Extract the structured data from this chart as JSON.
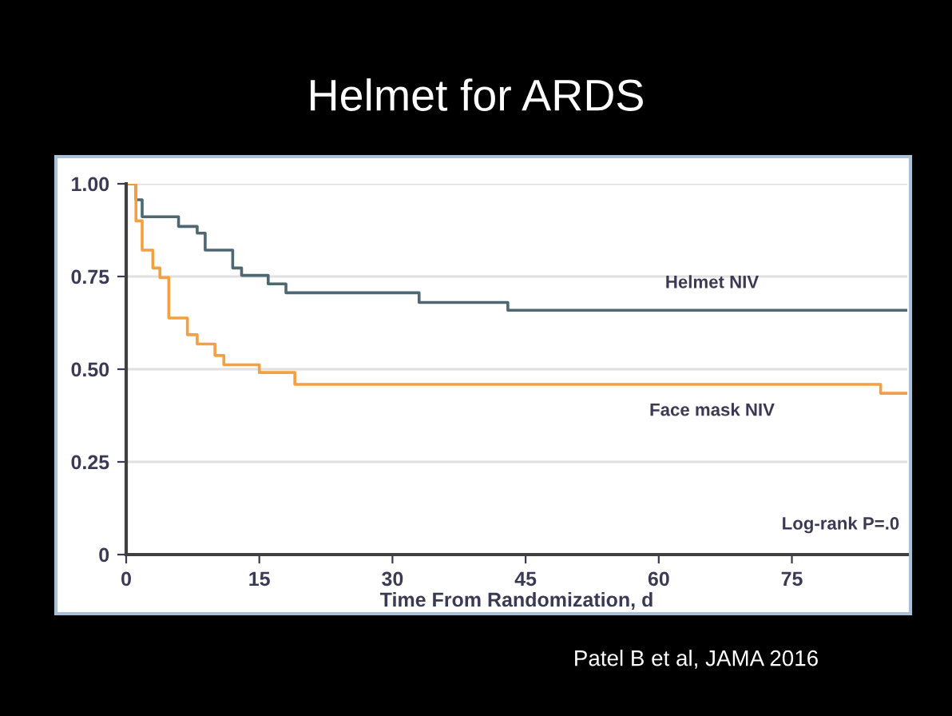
{
  "chart_data": {
    "type": "step",
    "title": "Helmet for ARDS",
    "xlabel": "Time From Randomization, d",
    "series": [
      {
        "name": "Helmet NIV",
        "color": "#4d6872",
        "x": [
          0,
          1.1,
          1.8,
          5.9,
          8,
          8.9,
          12,
          13,
          16,
          18,
          33,
          43,
          88
        ],
        "values": [
          1.0,
          0.957,
          0.911,
          0.885,
          0.867,
          0.821,
          0.773,
          0.753,
          0.73,
          0.706,
          0.68,
          0.659,
          0.659
        ]
      },
      {
        "name": "Face mask NIV",
        "color": "#f5a040",
        "x": [
          0,
          1.1,
          1.8,
          3,
          3.8,
          4.8,
          6.9,
          8,
          10,
          11,
          15,
          19,
          85,
          88
        ],
        "values": [
          1.0,
          0.9,
          0.821,
          0.773,
          0.747,
          0.638,
          0.593,
          0.568,
          0.537,
          0.512,
          0.491,
          0.459,
          0.435,
          0.435
        ]
      }
    ],
    "xlim": [
      0,
      88
    ],
    "ylim": [
      0,
      1.0
    ],
    "xticks": [
      0,
      15,
      30,
      45,
      60,
      75
    ],
    "yticks": [
      0,
      {
        "value": 0.25,
        "label": "0.25"
      },
      {
        "value": 0.5,
        "label": "0.50"
      },
      {
        "value": 0.75,
        "label": "0.75"
      },
      {
        "value": 1.0,
        "label": "1.00"
      }
    ],
    "grid": "y",
    "legend": false,
    "annotations": [
      "Log-rank P=.0",
      "Patel B et al, JAMA 2016"
    ]
  }
}
